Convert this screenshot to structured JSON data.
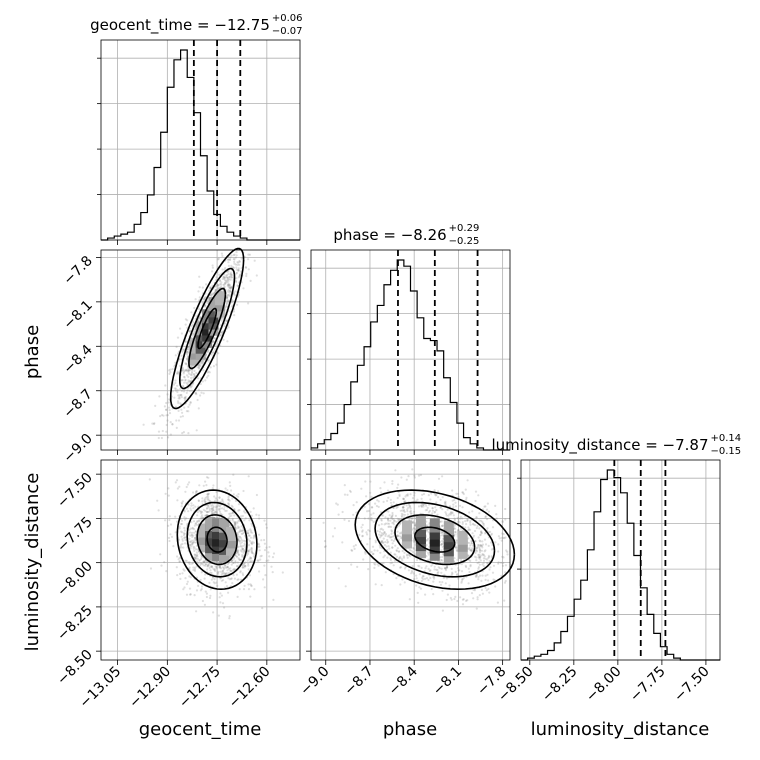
{
  "chart_data": {
    "type": "corner",
    "parameters": [
      {
        "name": "geocent_time",
        "label": "geocent_time",
        "range": [
          -13.1,
          -12.5
        ],
        "ticks": [
          -13.05,
          -12.9,
          -12.75,
          -12.6
        ],
        "tick_labels": [
          "−13.05",
          "−12.90",
          "−12.75",
          "−12.60"
        ]
      },
      {
        "name": "phase",
        "label": "phase",
        "range": [
          -9.1,
          -7.75
        ],
        "ticks": [
          -9.0,
          -8.7,
          -8.4,
          -8.1,
          -7.8
        ],
        "tick_labels": [
          "−9.0",
          "−8.7",
          "−8.4",
          "−8.1",
          "−7.8"
        ]
      },
      {
        "name": "luminosity_distance",
        "label": "luminosity_distance",
        "range": [
          -8.55,
          -7.42
        ],
        "ticks": [
          -8.5,
          -8.25,
          -8.0,
          -7.75,
          -7.5
        ],
        "tick_labels": [
          "−8.50",
          "−8.25",
          "−8.00",
          "−7.75",
          "−7.50"
        ]
      }
    ],
    "titles": [
      {
        "main": "geocent_time = −12.75",
        "sup": "+0.06",
        "sub": "−0.07"
      },
      {
        "main": "phase = −8.26",
        "sup": "+0.29",
        "sub": "−0.25"
      },
      {
        "main": "luminosity_distance = −7.87",
        "sup": "+0.14",
        "sub": "−0.15"
      }
    ],
    "quantiles": [
      [
        -12.82,
        -12.75,
        -12.68
      ],
      [
        -8.51,
        -8.26,
        -7.97
      ],
      [
        -8.02,
        -7.87,
        -7.73
      ]
    ],
    "histograms": [
      {
        "edges_start": -13.1,
        "bin_width": 0.02,
        "counts": [
          0,
          1,
          2,
          3,
          4,
          8,
          14,
          23,
          37,
          55,
          78,
          92,
          97,
          83,
          65,
          43,
          25,
          13,
          7,
          4,
          2,
          1,
          0,
          0,
          0,
          0,
          0,
          0,
          0,
          0
        ]
      },
      {
        "edges_start": -9.1,
        "bin_width": 0.045,
        "counts": [
          1,
          3,
          5,
          8,
          13,
          22,
          33,
          41,
          50,
          62,
          70,
          80,
          87,
          92,
          89,
          77,
          64,
          54,
          53,
          48,
          35,
          23,
          13,
          6,
          3,
          1,
          0,
          0,
          0,
          0
        ]
      },
      {
        "edges_start": -8.55,
        "bin_width": 0.0377,
        "counts": [
          0,
          1,
          2,
          3,
          5,
          9,
          15,
          23,
          32,
          42,
          58,
          78,
          95,
          100,
          96,
          88,
          72,
          55,
          38,
          24,
          14,
          7,
          3,
          1,
          0,
          0,
          0,
          0,
          0,
          0
        ]
      }
    ],
    "grid": true
  },
  "axes_labels": {
    "x0": "geocent_time",
    "x1": "phase",
    "x2": "luminosity_distance",
    "y1": "phase",
    "y2": "luminosity_distance"
  }
}
